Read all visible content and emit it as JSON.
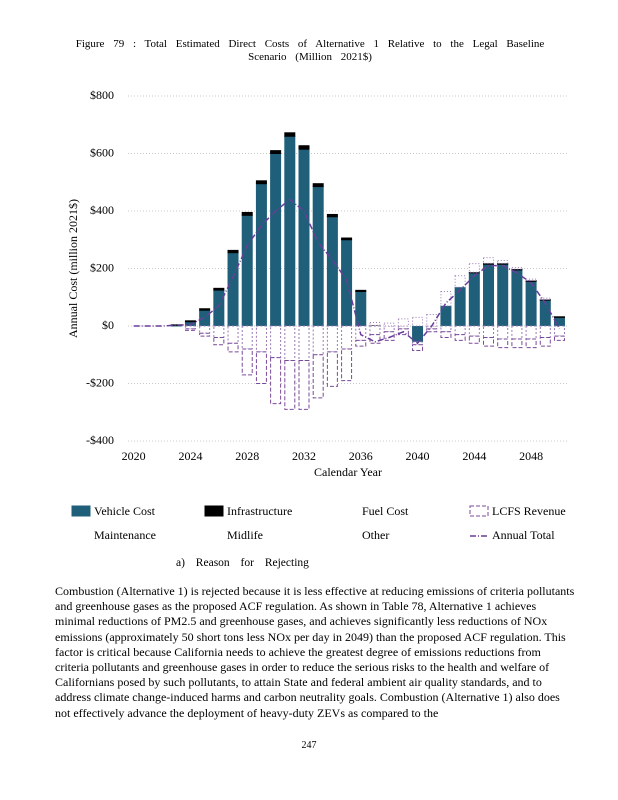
{
  "caption": "Figure 79 : Total Estimated Direct Costs of Alternative 1 Relative to the Legal Baseline Scenario (Million 2021$)",
  "chart_data": {
    "type": "stacked-bar-line",
    "x_label": "Calendar Year",
    "y_label": "Annual Cost (million 2021$)",
    "x": [
      2020,
      2021,
      2022,
      2023,
      2024,
      2025,
      2026,
      2027,
      2028,
      2029,
      2030,
      2031,
      2032,
      2033,
      2034,
      2035,
      2036,
      2037,
      2038,
      2039,
      2040,
      2041,
      2042,
      2043,
      2044,
      2045,
      2046,
      2047,
      2048,
      2049,
      2050
    ],
    "xlim": [
      2019.6,
      2050.6
    ],
    "xticks": [
      2020,
      2024,
      2028,
      2032,
      2036,
      2040,
      2044,
      2048
    ],
    "ylim": [
      -400,
      800
    ],
    "yticks": [
      {
        "value": -400,
        "label": "-$400"
      },
      {
        "value": -200,
        "label": "-$200"
      },
      {
        "value": 0,
        "label": "$0"
      },
      {
        "value": 200,
        "label": "$200"
      },
      {
        "value": 400,
        "label": "$400"
      },
      {
        "value": 600,
        "label": "$600"
      },
      {
        "value": 800,
        "label": "$800"
      }
    ],
    "grid": true,
    "series": [
      {
        "name": "Vehicle Cost",
        "kind": "bar",
        "color": "#1f5f7a",
        "stroke": "#1f5f7a",
        "dash": "none",
        "values": [
          0,
          0,
          0,
          3,
          15,
          55,
          125,
          255,
          385,
          495,
          600,
          660,
          615,
          485,
          380,
          300,
          120,
          0,
          0,
          0,
          -55,
          0,
          70,
          135,
          185,
          215,
          215,
          195,
          155,
          90,
          30
        ]
      },
      {
        "name": "Infrastructure",
        "kind": "bar",
        "color": "#000000",
        "stroke": "#000000",
        "dash": "none",
        "values": [
          0,
          0,
          0,
          1,
          3,
          5,
          6,
          8,
          10,
          10,
          10,
          12,
          12,
          10,
          8,
          6,
          4,
          2,
          0,
          0,
          0,
          0,
          0,
          0,
          2,
          3,
          3,
          3,
          3,
          2,
          2
        ]
      },
      {
        "name": "Fuel Cost",
        "kind": "bar",
        "color": "#ffffff",
        "stroke": "#9a7ab5",
        "dash": "2 2",
        "values": [
          0,
          0,
          0,
          0,
          -10,
          -25,
          -40,
          -60,
          -80,
          -90,
          -110,
          -120,
          -120,
          -100,
          -90,
          -80,
          -50,
          -30,
          -20,
          -10,
          -10,
          -10,
          -20,
          -30,
          -35,
          -40,
          -45,
          -45,
          -45,
          -40,
          -35
        ]
      },
      {
        "name": "LCFS Revenue",
        "kind": "bar",
        "color": "#ffffff",
        "stroke": "#7a4a9a",
        "dash": "4 2",
        "values": [
          0,
          0,
          0,
          0,
          -5,
          -10,
          -25,
          -30,
          -90,
          -110,
          -160,
          -170,
          -170,
          -150,
          -120,
          -110,
          -20,
          -30,
          -30,
          -20,
          -20,
          -10,
          -20,
          -20,
          -25,
          -30,
          -30,
          -30,
          -30,
          -30,
          -15
        ]
      },
      {
        "name": "Maintenance",
        "kind": "bar",
        "color": "#ffffff",
        "stroke": "#9a7ab5",
        "dash": "1 2",
        "values": [
          0,
          0,
          0,
          0,
          0,
          0,
          0,
          0,
          0,
          0,
          0,
          0,
          0,
          0,
          0,
          0,
          0,
          10,
          10,
          25,
          30,
          40,
          50,
          40,
          30,
          20,
          10,
          5,
          5,
          5,
          0
        ]
      },
      {
        "name": "Midlife",
        "kind": "bar",
        "color": "#ffffff",
        "stroke": "#9a7ab5",
        "dash": "1 2",
        "values": [
          0,
          0,
          0,
          0,
          0,
          0,
          0,
          0,
          0,
          0,
          0,
          0,
          0,
          0,
          0,
          0,
          0,
          0,
          0,
          0,
          0,
          0,
          0,
          0,
          0,
          0,
          0,
          0,
          0,
          0,
          0
        ]
      },
      {
        "name": "Other",
        "kind": "bar",
        "color": "#ffffff",
        "stroke": "#9a7ab5",
        "dash": "1 2",
        "values": [
          0,
          0,
          0,
          0,
          0,
          0,
          0,
          0,
          0,
          0,
          0,
          0,
          0,
          0,
          0,
          0,
          0,
          0,
          0,
          0,
          0,
          0,
          0,
          0,
          0,
          0,
          0,
          0,
          0,
          0,
          0
        ]
      },
      {
        "name": "Annual Total",
        "kind": "line",
        "color": "#6a3d9a",
        "stroke": "#6a3d9a",
        "dash": "6 2 1 2",
        "values": [
          0,
          0,
          0,
          3,
          5,
          30,
          70,
          170,
          280,
          350,
          400,
          440,
          400,
          290,
          230,
          160,
          -30,
          -55,
          -40,
          -20,
          -60,
          0,
          80,
          125,
          175,
          210,
          210,
          185,
          150,
          80,
          -10
        ]
      }
    ]
  },
  "section": "a) Reason for Rejecting",
  "paragraph": "Combustion (Alternative 1) is rejected because it is less effective at reducing emissions of criteria pollutants and greenhouse gases as the proposed ACF regulation. As shown in Table 78, Alternative 1 achieves minimal reductions of PM2.5 and greenhouse gases, and achieves significantly less reductions of NOx emissions (approximately 50 short tons less NOx per day in 2049) than the proposed ACF regulation. This factor is critical because California needs to achieve the greatest degree of emissions reductions from criteria pollutants and greenhouse gases in order to reduce the serious risks to the health and welfare of Californians posed by such pollutants, to attain State and federal ambient air quality standards, and to address climate change-induced harms and carbon neutrality goals. Combustion (Alternative 1) also does not effectively advance the deployment of heavy-duty ZEVs as compared to the",
  "page_number": "247"
}
